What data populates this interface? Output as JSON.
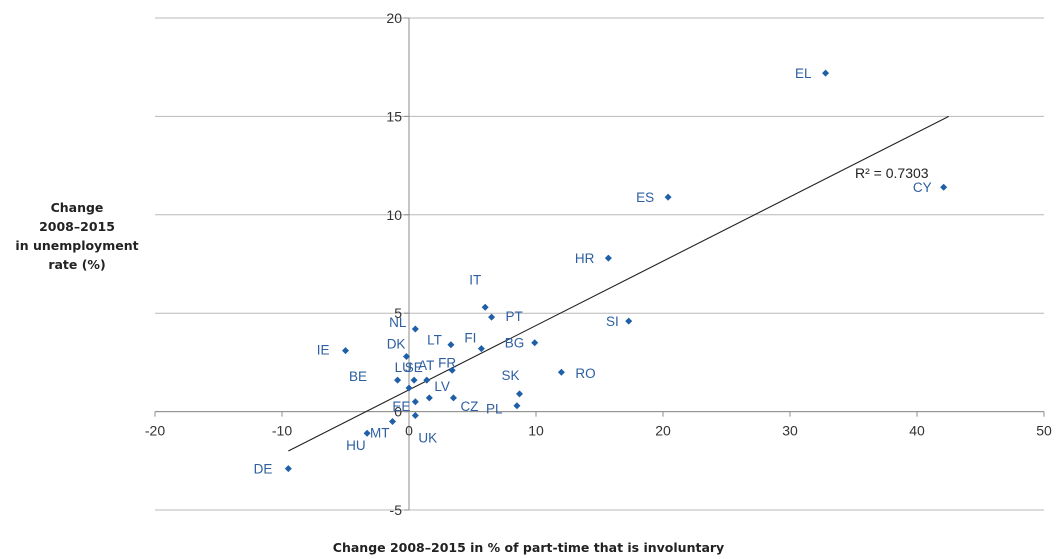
{
  "chart_data": {
    "type": "scatter",
    "xlabel": "Change 2008–2015 in % of part-time that is involuntary",
    "ylabel_lines": [
      "Change",
      "2008–2015",
      "in unemployment",
      "rate (%)"
    ],
    "xlim": [
      -20,
      50
    ],
    "ylim": [
      -5,
      20
    ],
    "x_ticks": [
      -20,
      -10,
      0,
      10,
      20,
      30,
      40,
      50
    ],
    "y_ticks": [
      -5,
      0,
      5,
      10,
      15,
      20
    ],
    "grid": "horizontal",
    "trendline": {
      "x": [
        -9.5,
        42.5
      ],
      "y": [
        -2.0,
        15.0
      ],
      "label": "R² = 0.7303"
    },
    "points": [
      {
        "label": "EL",
        "x": 32.8,
        "y": 17.2
      },
      {
        "label": "ES",
        "x": 20.4,
        "y": 10.9
      },
      {
        "label": "CY",
        "x": 42.1,
        "y": 11.4
      },
      {
        "label": "HR",
        "x": 15.7,
        "y": 7.8
      },
      {
        "label": "SI",
        "x": 17.3,
        "y": 4.6
      },
      {
        "label": "IT",
        "x": 6.0,
        "y": 5.3
      },
      {
        "label": "PT",
        "x": 6.5,
        "y": 4.8
      },
      {
        "label": "NL",
        "x": 0.5,
        "y": 4.2
      },
      {
        "label": "LT",
        "x": 3.3,
        "y": 3.4
      },
      {
        "label": "FI",
        "x": 5.7,
        "y": 3.2
      },
      {
        "label": "BG",
        "x": 9.9,
        "y": 3.5
      },
      {
        "label": "IE",
        "x": -5.0,
        "y": 3.1
      },
      {
        "label": "DK",
        "x": -0.2,
        "y": 2.8
      },
      {
        "label": "FR",
        "x": 3.4,
        "y": 2.1
      },
      {
        "label": "LU",
        "x": -0.9,
        "y": 1.6
      },
      {
        "label": "AT",
        "x": 0.4,
        "y": 1.6
      },
      {
        "label": "RO",
        "x": 12.0,
        "y": 2.0
      },
      {
        "label": "SE",
        "x": 1.4,
        "y": 1.6
      },
      {
        "label": "LV",
        "x": 1.6,
        "y": 0.7
      },
      {
        "label": "BE",
        "x": 0.0,
        "y": 1.2
      },
      {
        "label": "CZ",
        "x": 3.5,
        "y": 0.7
      },
      {
        "label": "EE",
        "x": 0.5,
        "y": 0.5
      },
      {
        "label": "SK",
        "x": 8.7,
        "y": 0.9
      },
      {
        "label": "PL",
        "x": 8.5,
        "y": 0.3
      },
      {
        "label": "UK",
        "x": 0.5,
        "y": -0.2
      },
      {
        "label": "MT",
        "x": -1.3,
        "y": -0.5
      },
      {
        "label": "HU",
        "x": -3.3,
        "y": -1.1
      },
      {
        "label": "DE",
        "x": -9.5,
        "y": -2.9
      }
    ]
  }
}
